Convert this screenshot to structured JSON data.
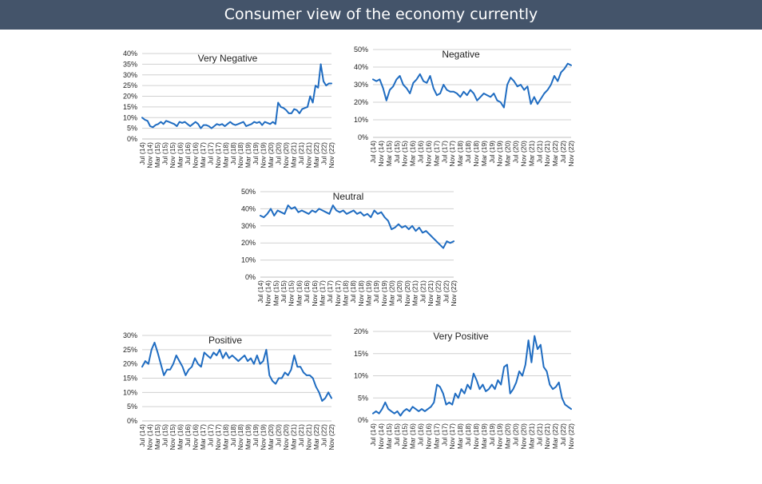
{
  "header": {
    "title": "Consumer view of the economy currently"
  },
  "colors": {
    "banner": "#44546a",
    "line": "#1f6cc1"
  },
  "chart_data": [
    {
      "type": "line",
      "title": "Very Negative",
      "ylim": [
        0,
        40
      ],
      "y_ticks": [
        "0%",
        "5%",
        "10%",
        "15%",
        "20%",
        "25%",
        "30%",
        "35%",
        "40%"
      ],
      "y_tick_values": [
        0,
        5,
        10,
        15,
        20,
        25,
        30,
        35,
        40
      ],
      "grid": true,
      "x_ticks": [
        "Jul (14)",
        "Nov (14)",
        "Mar (15)",
        "Jul (15)",
        "Nov (15)",
        "Mar (16)",
        "Jul (16)",
        "Nov (16)",
        "Mar (17)",
        "Jul (17)",
        "Nov (17)",
        "Mar (18)",
        "Jul (18)",
        "Nov (18)",
        "Mar (19)",
        "Jul (19)",
        "Nov (19)",
        "Mar (20)",
        "Jul (20)",
        "Nov (20)",
        "Mar (21)",
        "Jul (21)",
        "Nov (21)",
        "Mar (22)",
        "Jul (22)",
        "Nov (22)"
      ],
      "series": [
        {
          "values": [
            10,
            9,
            8.5,
            6,
            5.5,
            6.5,
            7,
            8,
            7,
            8.5,
            8,
            7.5,
            7,
            6,
            8,
            7.5,
            8,
            7,
            6,
            7,
            8,
            7,
            5,
            6.5,
            6.5,
            6,
            5,
            6,
            7,
            6.5,
            7,
            6,
            7,
            8,
            7,
            6.5,
            7,
            7.5,
            8,
            6,
            6.5,
            7,
            8,
            7.5,
            8,
            6.5,
            8,
            7.5,
            7,
            8,
            7,
            17,
            15,
            14.5,
            13.5,
            12,
            12,
            14,
            13.5,
            12,
            14,
            14.5,
            15,
            20,
            17,
            25,
            24,
            35,
            27,
            25,
            26,
            26
          ]
        }
      ]
    },
    {
      "type": "line",
      "title": "Negative",
      "ylim": [
        0,
        50
      ],
      "y_ticks": [
        "0%",
        "10%",
        "20%",
        "30%",
        "40%",
        "50%"
      ],
      "y_tick_values": [
        0,
        10,
        20,
        30,
        40,
        50
      ],
      "grid": true,
      "x_ticks": [
        "Jul (14)",
        "Nov (14)",
        "Mar (15)",
        "Jul (15)",
        "Nov (15)",
        "Mar (16)",
        "Jul (16)",
        "Nov (16)",
        "Mar (17)",
        "Jul (17)",
        "Nov (17)",
        "Mar (18)",
        "Jul (18)",
        "Nov (18)",
        "Mar (19)",
        "Jul (19)",
        "Nov (19)",
        "Mar (20)",
        "Jul (20)",
        "Nov (20)",
        "Mar (21)",
        "Jul (21)",
        "Nov (21)",
        "Mar (22)",
        "Jul (22)",
        "Nov (22)"
      ],
      "series": [
        {
          "values": [
            33,
            32,
            33,
            28,
            21,
            27,
            29,
            33,
            35,
            30,
            28,
            25,
            31,
            33,
            36,
            32,
            31,
            35,
            28,
            24,
            25,
            30,
            27,
            26,
            26,
            25,
            23,
            26,
            24,
            27,
            25,
            21,
            23,
            25,
            24,
            23,
            25,
            21,
            20,
            17,
            30,
            34,
            32,
            29,
            30,
            27,
            29,
            19,
            23,
            19,
            22,
            25,
            27,
            30,
            35,
            32,
            37,
            39,
            42,
            41
          ]
        }
      ]
    },
    {
      "type": "line",
      "title": "Neutral",
      "ylim": [
        0,
        50
      ],
      "y_ticks": [
        "0%",
        "10%",
        "20%",
        "30%",
        "40%",
        "50%"
      ],
      "y_tick_values": [
        0,
        10,
        20,
        30,
        40,
        50
      ],
      "grid": true,
      "x_ticks": [
        "Jul (14)",
        "Nov (14)",
        "Mar (15)",
        "Jul (15)",
        "Nov (15)",
        "Mar (16)",
        "Jul (16)",
        "Nov (16)",
        "Mar (17)",
        "Jul (17)",
        "Nov (17)",
        "Mar (18)",
        "Jul (18)",
        "Nov (18)",
        "Mar (19)",
        "Jul (19)",
        "Nov (19)",
        "Mar (20)",
        "Jul (20)",
        "Nov (20)",
        "Mar (21)",
        "Jul (21)",
        "Nov (21)",
        "Mar (22)",
        "Jul (22)",
        "Nov (22)"
      ],
      "series": [
        {
          "values": [
            36,
            35,
            37,
            40,
            36,
            39,
            38,
            37,
            42,
            40,
            41,
            38,
            39,
            38,
            37,
            39,
            38,
            40,
            39,
            38,
            37,
            42,
            39,
            38,
            39,
            37,
            38,
            39,
            37,
            38,
            36,
            37,
            35,
            39,
            37,
            38,
            35,
            33,
            28,
            29,
            31,
            29,
            30,
            28,
            30,
            27,
            29,
            26,
            27,
            25,
            23,
            21,
            19,
            17,
            21,
            20,
            21
          ]
        }
      ]
    },
    {
      "type": "line",
      "title": "Positive",
      "ylim": [
        0,
        30
      ],
      "y_ticks": [
        "0%",
        "5%",
        "10%",
        "15%",
        "20%",
        "25%",
        "30%"
      ],
      "y_tick_values": [
        0,
        5,
        10,
        15,
        20,
        25,
        30
      ],
      "grid": true,
      "x_ticks": [
        "Jul (14)",
        "Nov (14)",
        "Mar (15)",
        "Jul (15)",
        "Nov (15)",
        "Mar (16)",
        "Jul (16)",
        "Nov (16)",
        "Mar (17)",
        "Jul (17)",
        "Nov (17)",
        "Mar (18)",
        "Jul (18)",
        "Nov (18)",
        "Mar (19)",
        "Jul (19)",
        "Nov (19)",
        "Mar (20)",
        "Jul (20)",
        "Nov (20)",
        "Mar (21)",
        "Jul (21)",
        "Nov (21)",
        "Mar (22)",
        "Jul (22)",
        "Nov (22)"
      ],
      "series": [
        {
          "values": [
            19,
            21,
            20,
            25,
            27.5,
            24,
            20,
            16,
            18,
            18,
            20,
            23,
            21,
            19,
            16,
            18,
            19,
            22,
            20,
            19,
            24,
            23,
            22,
            24,
            23,
            25,
            22,
            24,
            22,
            23,
            22,
            21,
            22,
            23,
            21,
            22,
            20,
            23,
            20,
            21,
            25,
            16,
            14,
            13,
            15,
            15,
            17,
            16,
            18,
            23,
            19,
            19,
            17,
            16,
            16,
            15,
            12,
            10,
            7,
            8,
            10,
            8
          ]
        }
      ]
    },
    {
      "type": "line",
      "title": "Very Positive",
      "ylim": [
        0,
        20
      ],
      "y_ticks": [
        "0%",
        "5%",
        "10%",
        "15%",
        "20%"
      ],
      "y_tick_values": [
        0,
        5,
        10,
        15,
        20
      ],
      "grid": true,
      "x_ticks": [
        "Jul (14)",
        "Nov (14)",
        "Mar (15)",
        "Jul (15)",
        "Nov (15)",
        "Mar (16)",
        "Jul (16)",
        "Nov (16)",
        "Mar (17)",
        "Jul (17)",
        "Nov (17)",
        "Mar (18)",
        "Jul (18)",
        "Nov (18)",
        "Mar (19)",
        "Jul (19)",
        "Nov (19)",
        "Mar (20)",
        "Jul (20)",
        "Nov (20)",
        "Mar (21)",
        "Jul (21)",
        "Nov (21)",
        "Mar (22)",
        "Jul (22)",
        "Nov (22)"
      ],
      "series": [
        {
          "values": [
            1.5,
            2,
            1.5,
            2.5,
            4,
            2.5,
            2,
            1.5,
            2,
            1,
            2,
            2.5,
            2,
            3,
            2.5,
            2,
            2.5,
            2,
            2.5,
            3,
            4,
            8,
            7.5,
            6,
            3.5,
            4,
            3.5,
            6,
            5,
            7,
            6,
            8,
            7,
            10.5,
            9,
            7,
            8,
            6.5,
            7,
            8,
            7,
            9,
            8,
            12,
            12.5,
            6,
            7,
            8.5,
            11,
            10,
            12.5,
            18,
            13,
            19,
            16,
            17,
            12,
            11,
            8,
            7,
            7.5,
            8.5,
            5,
            3.5,
            3,
            2.5
          ]
        }
      ]
    }
  ]
}
